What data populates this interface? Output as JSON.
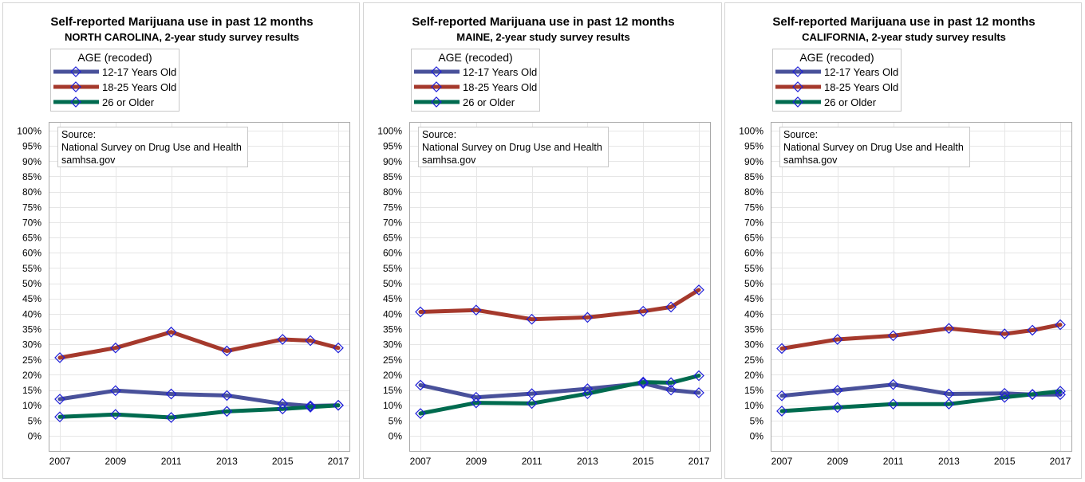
{
  "colors": {
    "youth": "#49519a",
    "young_adult": "#a5392c",
    "adult": "#006b4f",
    "marker": "#1f1fd8",
    "grid": "#e6e6e6",
    "frame": "#a8a8a8"
  },
  "legend": {
    "title": "AGE (recoded)",
    "items": [
      {
        "label": "12-17 Years Old",
        "color_key": "youth"
      },
      {
        "label": "18-25 Years Old",
        "color_key": "young_adult"
      },
      {
        "label": "26 or Older",
        "color_key": "adult"
      }
    ]
  },
  "source_note": {
    "line1": "Source:",
    "line2": "National Survey on Drug Use and Health",
    "line3": "samhsa.gov"
  },
  "chart_data": [
    {
      "type": "line",
      "title": "Self-reported Marijuana use in past 12 months",
      "subtitle": "NORTH CAROLINA, 2-year study survey results",
      "x": [
        2007,
        2009,
        2011,
        2013,
        2015,
        2016,
        2017
      ],
      "x_ticks": [
        "2007",
        "2009",
        "2011",
        "2013",
        "2015",
        "2017"
      ],
      "x_range": [
        2007,
        2017
      ],
      "y_ticks": [
        "0%",
        "5%",
        "10%",
        "15%",
        "20%",
        "25%",
        "30%",
        "35%",
        "40%",
        "45%",
        "50%",
        "55%",
        "60%",
        "65%",
        "70%",
        "75%",
        "80%",
        "85%",
        "90%",
        "95%",
        "100%"
      ],
      "ylim": [
        0,
        100
      ],
      "grid": true,
      "legend_position": "top-left",
      "series": [
        {
          "name": "12-17 Years Old",
          "color_key": "youth",
          "values": [
            12,
            14.8,
            13.7,
            13.2,
            10.5,
            9.8,
            10
          ]
        },
        {
          "name": "18-25 Years Old",
          "color_key": "young_adult",
          "values": [
            25.6,
            28.8,
            34,
            27.8,
            31.6,
            31.2,
            28.8
          ]
        },
        {
          "name": "26 or Older",
          "color_key": "adult",
          "values": [
            6.2,
            7,
            6,
            8,
            8.8,
            9.4,
            10
          ]
        }
      ]
    },
    {
      "type": "line",
      "title": "Self-reported Marijuana use in past 12 months",
      "subtitle": "MAINE, 2-year study survey results",
      "x": [
        2007,
        2009,
        2011,
        2013,
        2015,
        2016,
        2017
      ],
      "x_ticks": [
        "2007",
        "2009",
        "2011",
        "2013",
        "2015",
        "2017"
      ],
      "x_range": [
        2007,
        2017
      ],
      "y_ticks": [
        "0%",
        "5%",
        "10%",
        "15%",
        "20%",
        "25%",
        "30%",
        "35%",
        "40%",
        "45%",
        "50%",
        "55%",
        "60%",
        "65%",
        "70%",
        "75%",
        "80%",
        "85%",
        "90%",
        "95%",
        "100%"
      ],
      "ylim": [
        0,
        100
      ],
      "grid": true,
      "legend_position": "top-left",
      "series": [
        {
          "name": "12-17 Years Old",
          "color_key": "youth",
          "values": [
            16.6,
            12.6,
            13.8,
            15.4,
            17.2,
            15,
            14.1
          ]
        },
        {
          "name": "18-25 Years Old",
          "color_key": "young_adult",
          "values": [
            40.6,
            41.2,
            38.2,
            38.8,
            40.8,
            42.2,
            47.8
          ]
        },
        {
          "name": "26 or Older",
          "color_key": "adult",
          "values": [
            7.3,
            10.8,
            10.6,
            13.8,
            17.6,
            17.4,
            19.7
          ]
        }
      ]
    },
    {
      "type": "line",
      "title": "Self-reported Marijuana use in past 12 months",
      "subtitle": "CALIFORNIA, 2-year study survey results",
      "x": [
        2007,
        2009,
        2011,
        2013,
        2015,
        2016,
        2017
      ],
      "x_ticks": [
        "2007",
        "2009",
        "2011",
        "2013",
        "2015",
        "2017"
      ],
      "x_range": [
        2007,
        2017
      ],
      "y_ticks": [
        "0%",
        "5%",
        "10%",
        "15%",
        "20%",
        "25%",
        "30%",
        "35%",
        "40%",
        "45%",
        "50%",
        "55%",
        "60%",
        "65%",
        "70%",
        "75%",
        "80%",
        "85%",
        "90%",
        "95%",
        "100%"
      ],
      "ylim": [
        0,
        100
      ],
      "grid": true,
      "legend_position": "top-left",
      "series": [
        {
          "name": "12-17 Years Old",
          "color_key": "youth",
          "values": [
            13.1,
            14.9,
            16.8,
            13.7,
            13.9,
            13.5,
            13.5
          ]
        },
        {
          "name": "18-25 Years Old",
          "color_key": "young_adult",
          "values": [
            28.6,
            31.6,
            32.8,
            35.2,
            33.4,
            34.6,
            36.4
          ]
        },
        {
          "name": "26 or Older",
          "color_key": "adult",
          "values": [
            8.1,
            9.3,
            10.4,
            10.4,
            12.6,
            13.6,
            14.6
          ]
        }
      ]
    }
  ]
}
